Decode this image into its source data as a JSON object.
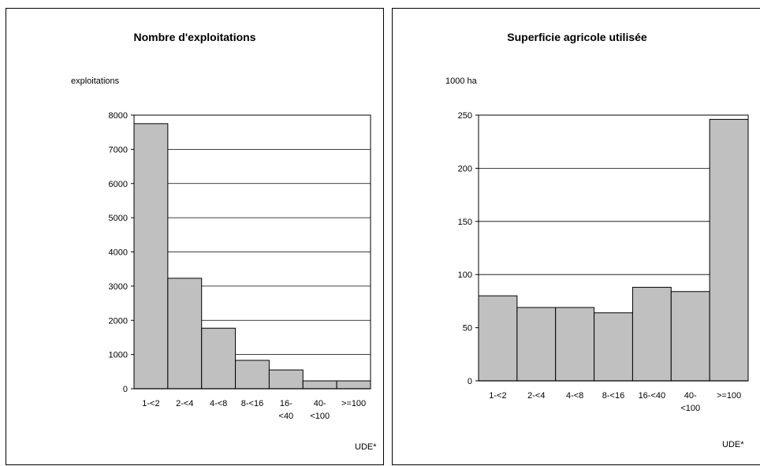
{
  "chart_data": [
    {
      "type": "bar",
      "title": "Nombre d'exploitations",
      "ylabel": "exploitations",
      "xlabel": "UDE*",
      "categories": [
        [
          "1-<2"
        ],
        [
          "2-<4"
        ],
        [
          "4-<8"
        ],
        [
          "8-<16"
        ],
        [
          "16-",
          "<40"
        ],
        [
          "40-",
          "<100"
        ],
        [
          ">=100"
        ]
      ],
      "values": [
        7750,
        3230,
        1770,
        830,
        550,
        230,
        230
      ],
      "ylim": [
        0,
        8000
      ],
      "yticks": [
        0,
        1000,
        2000,
        3000,
        4000,
        5000,
        6000,
        7000,
        8000
      ],
      "grid": true,
      "bar_color": "#c0c0c0"
    },
    {
      "type": "bar",
      "title": "Superficie agricole utilisée",
      "ylabel": "1000 ha",
      "xlabel": "UDE*",
      "categories": [
        [
          "1-<2"
        ],
        [
          "2-<4"
        ],
        [
          "4-<8"
        ],
        [
          "8-<16"
        ],
        [
          "16-<40"
        ],
        [
          "40-",
          "<100"
        ],
        [
          ">=100"
        ]
      ],
      "values": [
        80,
        69,
        69,
        64,
        88,
        84,
        246
      ],
      "ylim": [
        0,
        250
      ],
      "yticks": [
        0,
        50,
        100,
        150,
        200,
        250
      ],
      "grid": true,
      "bar_color": "#c0c0c0"
    }
  ]
}
